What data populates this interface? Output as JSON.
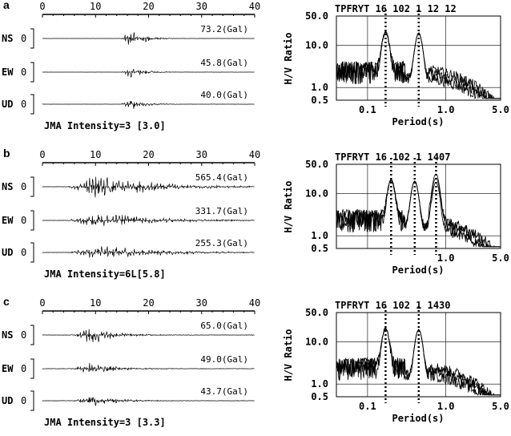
{
  "chart_data": [
    {
      "panel": "a",
      "type": "line",
      "time_axis": {
        "ticks": [
          "0",
          "10",
          "20",
          "30",
          "40"
        ],
        "range": [
          0,
          40
        ]
      },
      "channels": [
        {
          "name": "NS",
          "zero": "0",
          "peak": "73.2(Gal)"
        },
        {
          "name": "EW",
          "zero": "0",
          "peak": "45.8(Gal)"
        },
        {
          "name": "UD",
          "zero": "0",
          "peak": "40.0(Gal)"
        }
      ],
      "intensity": "JMA Intensity=3 [3.0]",
      "spectrum": {
        "station": "TPFRYT 16 102 1 12 12",
        "ylabel": "H/V Ratio",
        "xlabel": "Period(s)",
        "y_ticks": [
          "50.0",
          "10.0",
          "1.0",
          "0.5"
        ],
        "x_ticks": [
          "0.1",
          "1.0",
          "5.0"
        ],
        "xlim": [
          0.04,
          5.0
        ],
        "ylim": [
          0.5,
          50
        ],
        "x_scale": "log",
        "y_scale": "log",
        "peak_markers": [
          0.17,
          0.45
        ]
      }
    },
    {
      "panel": "b",
      "type": "line",
      "time_axis": {
        "ticks": [
          "0",
          "10",
          "20",
          "30",
          "40"
        ],
        "range": [
          0,
          40
        ]
      },
      "channels": [
        {
          "name": "NS",
          "zero": "0",
          "peak": "565.4(Gal)"
        },
        {
          "name": "EW",
          "zero": "0",
          "peak": "331.7(Gal)"
        },
        {
          "name": "UD",
          "zero": "0",
          "peak": "255.3(Gal)"
        }
      ],
      "intensity": "JMA Intensity=6L[5.8]",
      "spectrum": {
        "station": "TPFRYT 16 102 1 1407",
        "ylabel": "H/V Ratio",
        "xlabel": "Period(s)",
        "y_ticks": [
          "50.0",
          "10.0",
          "1.0",
          "0.5"
        ],
        "x_ticks": [
          "1.0",
          "5.0"
        ],
        "xlim": [
          0.04,
          5.0
        ],
        "ylim": [
          0.5,
          50
        ],
        "x_scale": "log",
        "y_scale": "log",
        "peak_markers": [
          0.2,
          0.4,
          0.75
        ]
      }
    },
    {
      "panel": "c",
      "type": "line",
      "time_axis": {
        "ticks": [
          "0",
          "10",
          "20",
          "30",
          "40"
        ],
        "range": [
          0,
          40
        ]
      },
      "channels": [
        {
          "name": "NS",
          "zero": "0",
          "peak": "65.0(Gal)"
        },
        {
          "name": "EW",
          "zero": "0",
          "peak": "49.0(Gal)"
        },
        {
          "name": "UD",
          "zero": "0",
          "peak": "43.7(Gal)"
        }
      ],
      "intensity": "JMA Intensity=3 [3.3]",
      "spectrum": {
        "station": "TPFRYT 16 102 1 1430",
        "ylabel": "H/V Ratio",
        "xlabel": "Period(s)",
        "y_ticks": [
          "50.0",
          "10.0",
          "1.0",
          "0.5"
        ],
        "x_ticks": [
          "0.1",
          "1.0",
          "5.0"
        ],
        "xlim": [
          0.04,
          5.0
        ],
        "ylim": [
          0.5,
          50
        ],
        "x_scale": "log",
        "y_scale": "log",
        "peak_markers": [
          0.17,
          0.45
        ]
      }
    }
  ]
}
